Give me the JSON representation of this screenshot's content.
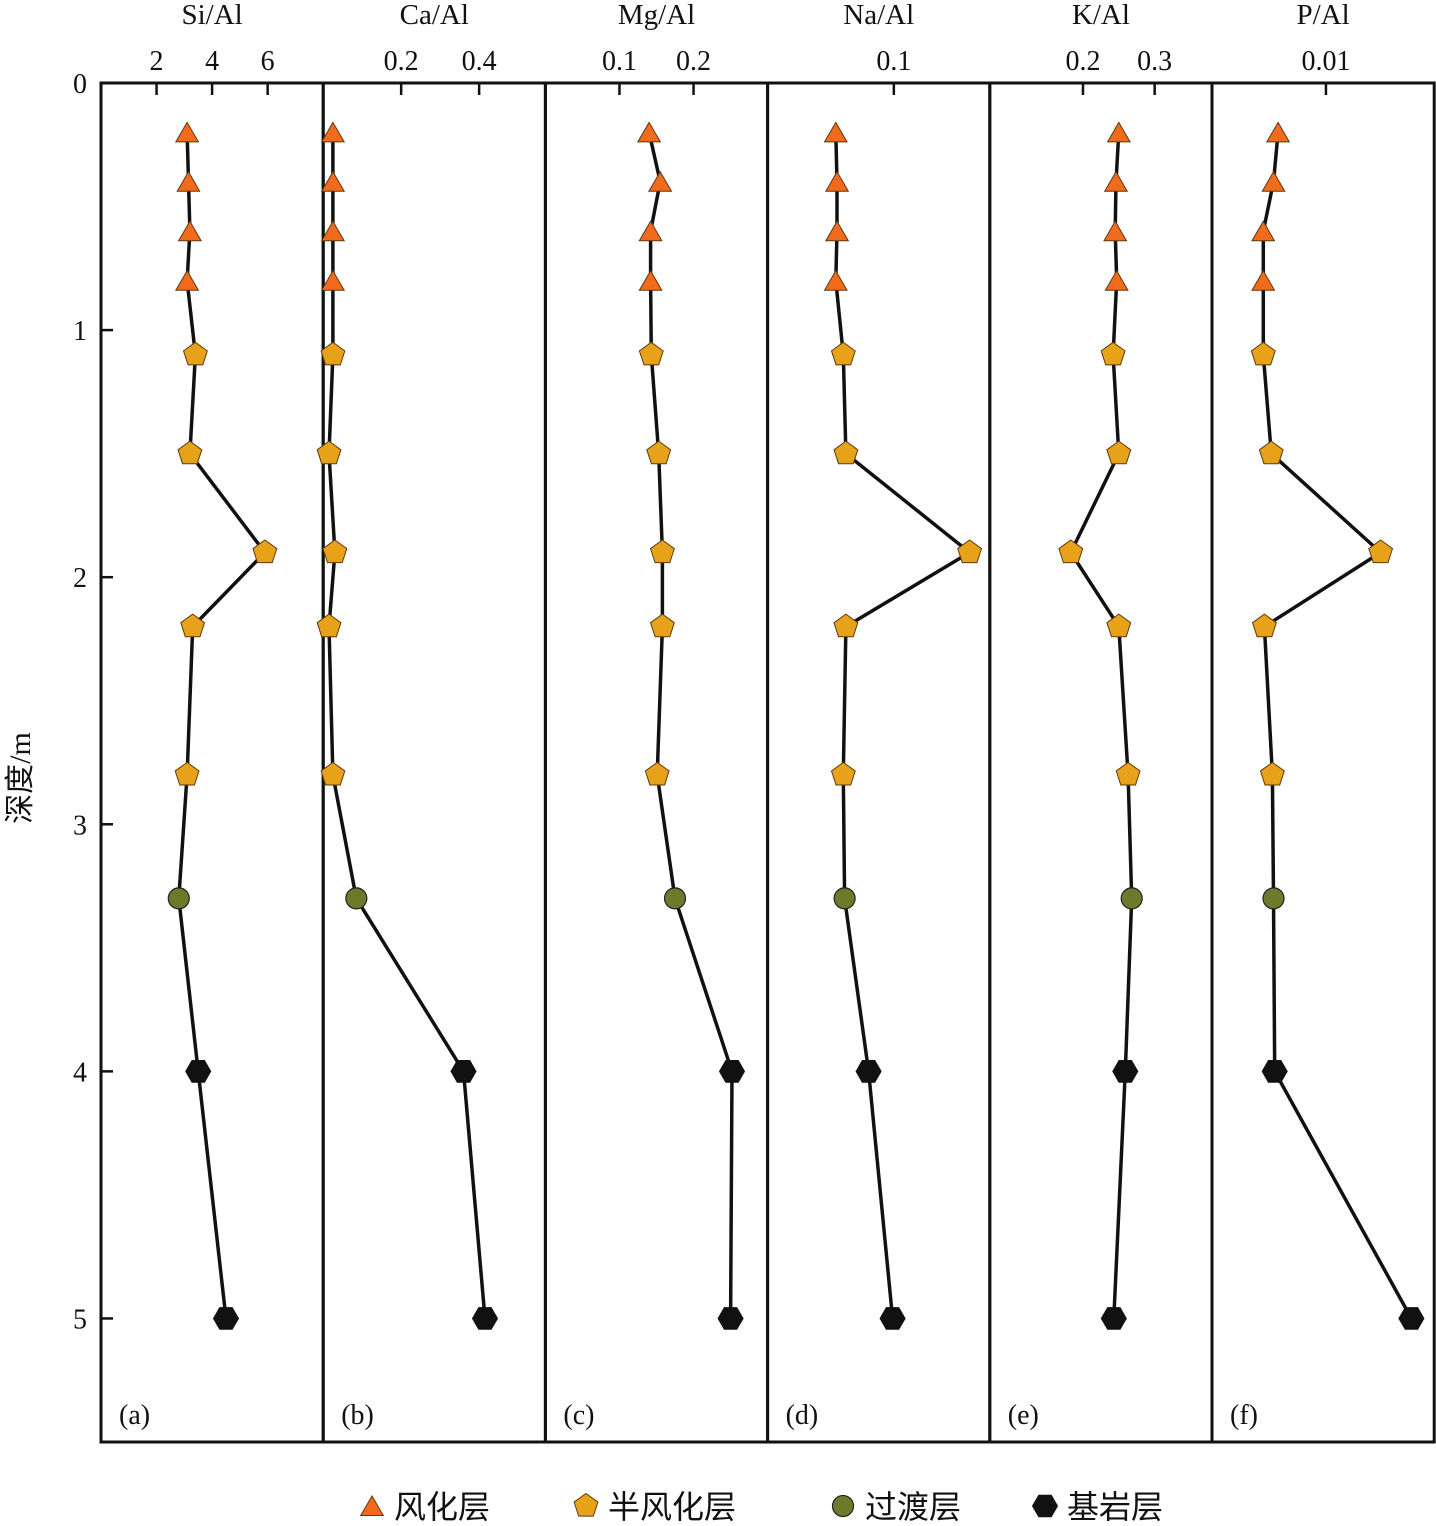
{
  "y_axis": {
    "label": "深度/m",
    "min": 0,
    "max": 5.5,
    "ticks": [
      0,
      1,
      2,
      3,
      4,
      5
    ],
    "inverted": true
  },
  "layer_colors": {
    "weathered": "#f26b1d",
    "semi_weathered": "#e8a21a",
    "transition": "#6b7b2a",
    "bedrock": "#111111"
  },
  "legend": {
    "items": [
      {
        "key": "weathered",
        "label": "风化层",
        "icon": "triangle-marker"
      },
      {
        "key": "semi_weathered",
        "label": "半风化层",
        "icon": "pentagon-marker"
      },
      {
        "key": "transition",
        "label": "过渡层",
        "icon": "circle-marker"
      },
      {
        "key": "bedrock",
        "label": "基岩层",
        "icon": "hexagon-marker"
      }
    ]
  },
  "chart_data": [
    {
      "type": "line",
      "panel": "(a)",
      "title": "Si/Al",
      "xlim": [
        0,
        8
      ],
      "xticks": [
        2,
        4,
        6
      ],
      "depth": [
        0.2,
        0.4,
        0.6,
        0.8,
        1.1,
        1.5,
        1.9,
        2.2,
        2.8,
        3.3,
        4.0,
        5.0
      ],
      "values": [
        3.1,
        3.15,
        3.2,
        3.1,
        3.4,
        3.2,
        5.9,
        3.3,
        3.1,
        2.8,
        3.5,
        4.5
      ],
      "layer": [
        "weathered",
        "weathered",
        "weathered",
        "weathered",
        "semi_weathered",
        "semi_weathered",
        "semi_weathered",
        "semi_weathered",
        "semi_weathered",
        "transition",
        "bedrock",
        "bedrock"
      ]
    },
    {
      "type": "line",
      "panel": "(b)",
      "title": "Ca/Al",
      "xlim": [
        0,
        0.57
      ],
      "xticks": [
        0.2,
        0.4
      ],
      "xtick_labels": [
        "0.2",
        "0.4"
      ],
      "depth": [
        0.2,
        0.4,
        0.6,
        0.8,
        1.1,
        1.5,
        1.9,
        2.2,
        2.8,
        3.3,
        4.0,
        5.0
      ],
      "values": [
        0.025,
        0.025,
        0.025,
        0.025,
        0.025,
        0.015,
        0.03,
        0.015,
        0.025,
        0.085,
        0.36,
        0.415
      ],
      "layer": [
        "weathered",
        "weathered",
        "weathered",
        "weathered",
        "semi_weathered",
        "semi_weathered",
        "semi_weathered",
        "semi_weathered",
        "semi_weathered",
        "transition",
        "bedrock",
        "bedrock"
      ]
    },
    {
      "type": "line",
      "panel": "(c)",
      "title": "Mg/Al",
      "xlim": [
        0,
        0.3
      ],
      "xticks": [
        0.1,
        0.2
      ],
      "xtick_labels": [
        "0.1",
        "0.2"
      ],
      "depth": [
        0.2,
        0.4,
        0.6,
        0.8,
        1.1,
        1.5,
        1.9,
        2.2,
        2.8,
        3.3,
        4.0,
        5.0
      ],
      "values": [
        0.14,
        0.155,
        0.142,
        0.142,
        0.143,
        0.153,
        0.158,
        0.158,
        0.151,
        0.175,
        0.252,
        0.25
      ],
      "layer": [
        "weathered",
        "weathered",
        "weathered",
        "weathered",
        "semi_weathered",
        "semi_weathered",
        "semi_weathered",
        "semi_weathered",
        "semi_weathered",
        "transition",
        "bedrock",
        "bedrock"
      ]
    },
    {
      "type": "line",
      "panel": "(d)",
      "title": "Na/Al",
      "xlim": [
        0,
        0.176
      ],
      "xticks": [
        0.1
      ],
      "xtick_labels": [
        "0.1"
      ],
      "depth": [
        0.2,
        0.4,
        0.6,
        0.8,
        1.1,
        1.5,
        1.9,
        2.2,
        2.8,
        3.3,
        4.0,
        5.0
      ],
      "values": [
        0.054,
        0.055,
        0.055,
        0.054,
        0.06,
        0.062,
        0.16,
        0.062,
        0.06,
        0.061,
        0.08,
        0.099
      ],
      "layer": [
        "weathered",
        "weathered",
        "weathered",
        "weathered",
        "semi_weathered",
        "semi_weathered",
        "semi_weathered",
        "semi_weathered",
        "semi_weathered",
        "transition",
        "bedrock",
        "bedrock"
      ]
    },
    {
      "type": "line",
      "panel": "(e)",
      "title": "K/Al",
      "xlim": [
        0.07,
        0.38
      ],
      "xticks": [
        0.2,
        0.3
      ],
      "xtick_labels": [
        "0.2",
        "0.3"
      ],
      "depth": [
        0.2,
        0.4,
        0.6,
        0.8,
        1.1,
        1.5,
        1.9,
        2.2,
        2.8,
        3.3,
        4.0,
        5.0
      ],
      "values": [
        0.25,
        0.246,
        0.245,
        0.247,
        0.242,
        0.25,
        0.183,
        0.25,
        0.263,
        0.268,
        0.259,
        0.243
      ],
      "layer": [
        "weathered",
        "weathered",
        "weathered",
        "weathered",
        "semi_weathered",
        "semi_weathered",
        "semi_weathered",
        "semi_weathered",
        "semi_weathered",
        "transition",
        "bedrock",
        "bedrock"
      ]
    },
    {
      "type": "line",
      "panel": "(f)",
      "title": "P/Al",
      "xlim": [
        0,
        0.0195
      ],
      "xticks": [
        0.01
      ],
      "xtick_labels": [
        "0.01"
      ],
      "depth": [
        0.2,
        0.4,
        0.6,
        0.8,
        1.1,
        1.5,
        1.9,
        2.2,
        2.8,
        3.3,
        4.0,
        5.0
      ],
      "values": [
        0.0058,
        0.0054,
        0.0045,
        0.0045,
        0.0045,
        0.0052,
        0.0148,
        0.0046,
        0.0053,
        0.0054,
        0.0055,
        0.0175
      ],
      "layer": [
        "weathered",
        "weathered",
        "weathered",
        "weathered",
        "semi_weathered",
        "semi_weathered",
        "semi_weathered",
        "semi_weathered",
        "semi_weathered",
        "transition",
        "bedrock",
        "bedrock"
      ]
    }
  ]
}
